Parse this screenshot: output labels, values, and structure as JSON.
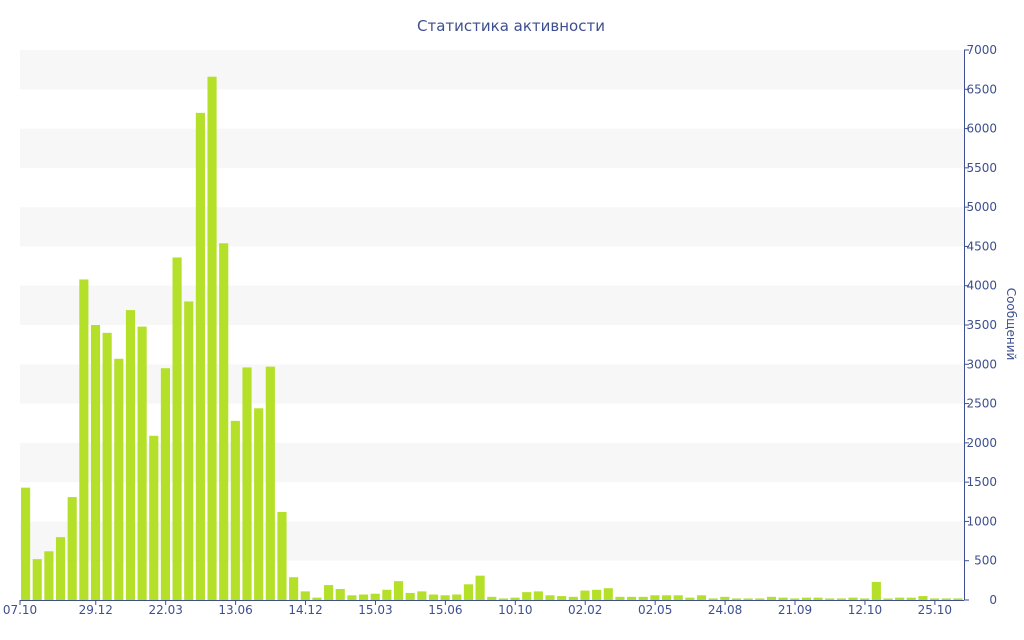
{
  "colors": {
    "bar": "#b5e02a",
    "band": "#f7f7f7",
    "text": "#3e4f8f",
    "axis": "#3e4f8f"
  },
  "chart_data": {
    "type": "bar",
    "title": "Статистика активности",
    "xlabel": "",
    "ylabel": "Сообщений",
    "ylim": [
      0,
      7000
    ],
    "y_ticks": [
      0,
      500,
      1000,
      1500,
      2000,
      2500,
      3000,
      3500,
      4000,
      4500,
      5000,
      5500,
      6000,
      6500,
      7000
    ],
    "x_tick_labels": [
      {
        "label": "07.10",
        "index": 0
      },
      {
        "label": "29.12",
        "index": 6
      },
      {
        "label": "22.03",
        "index": 12
      },
      {
        "label": "13.06",
        "index": 18
      },
      {
        "label": "14.12",
        "index": 24
      },
      {
        "label": "15.03",
        "index": 30
      },
      {
        "label": "15.06",
        "index": 36
      },
      {
        "label": "10.10",
        "index": 42
      },
      {
        "label": "02.02",
        "index": 48
      },
      {
        "label": "02.05",
        "index": 54
      },
      {
        "label": "24.08",
        "index": 60
      },
      {
        "label": "21.09",
        "index": 66
      },
      {
        "label": "12.10",
        "index": 72
      },
      {
        "label": "25.10",
        "index": 78
      }
    ],
    "grid": "alternating horizontal bands",
    "values": [
      1430,
      520,
      620,
      800,
      1310,
      4080,
      3500,
      3400,
      3070,
      3690,
      3480,
      2090,
      2950,
      4360,
      3800,
      6200,
      6660,
      4540,
      2280,
      2960,
      2440,
      2970,
      1120,
      290,
      110,
      30,
      190,
      140,
      60,
      70,
      80,
      130,
      240,
      90,
      110,
      70,
      60,
      70,
      200,
      310,
      40,
      20,
      30,
      100,
      110,
      60,
      50,
      40,
      120,
      130,
      150,
      40,
      40,
      40,
      60,
      60,
      60,
      30,
      60,
      20,
      40,
      20,
      20,
      20,
      40,
      30,
      20,
      30,
      30,
      20,
      20,
      30,
      20,
      230,
      20,
      30,
      30,
      50,
      20,
      20,
      20
    ]
  }
}
